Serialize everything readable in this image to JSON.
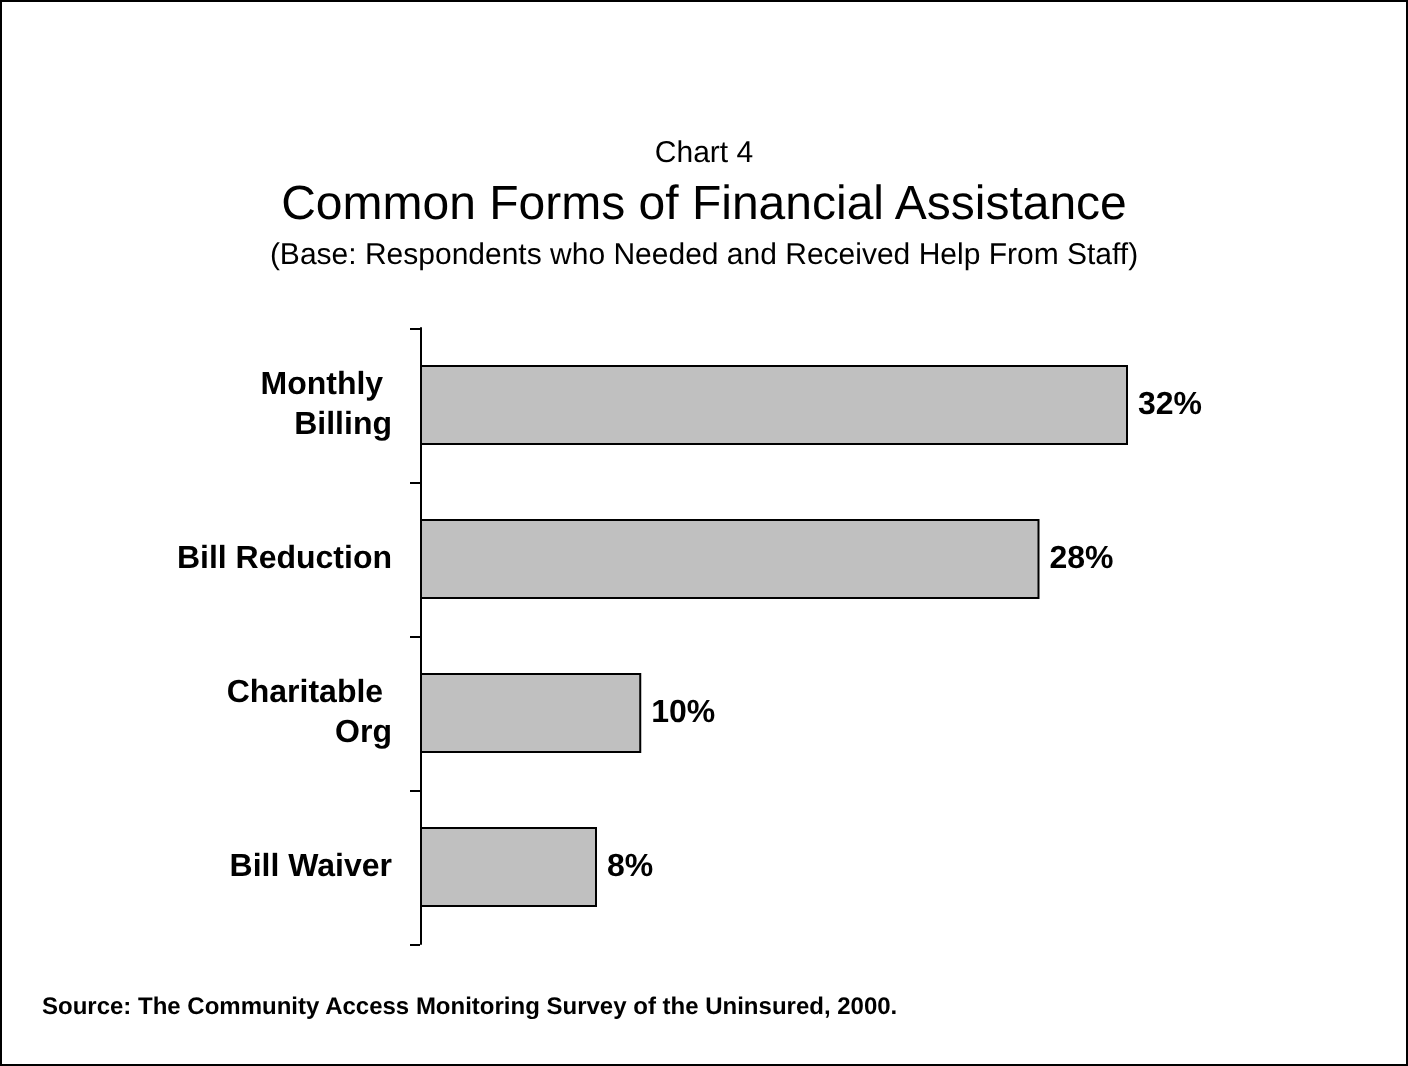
{
  "chart_data": {
    "type": "bar",
    "orientation": "horizontal",
    "title": "Common Forms of Financial Assistance",
    "subtitle": "(Base: Respondents who Needed and Received Help From Staff)",
    "annotations": [
      "Chart 4",
      "Source: The Community Access Monitoring Survey of the Uninsured, 2000."
    ],
    "categories": [
      "Monthly Billing",
      "Bill Reduction",
      "Charitable Org",
      "Bill Waiver"
    ],
    "values": [
      32,
      28,
      10,
      8
    ],
    "value_labels": [
      "32%",
      "28%",
      "10%",
      "8%"
    ],
    "color": "#c0c0c0"
  }
}
